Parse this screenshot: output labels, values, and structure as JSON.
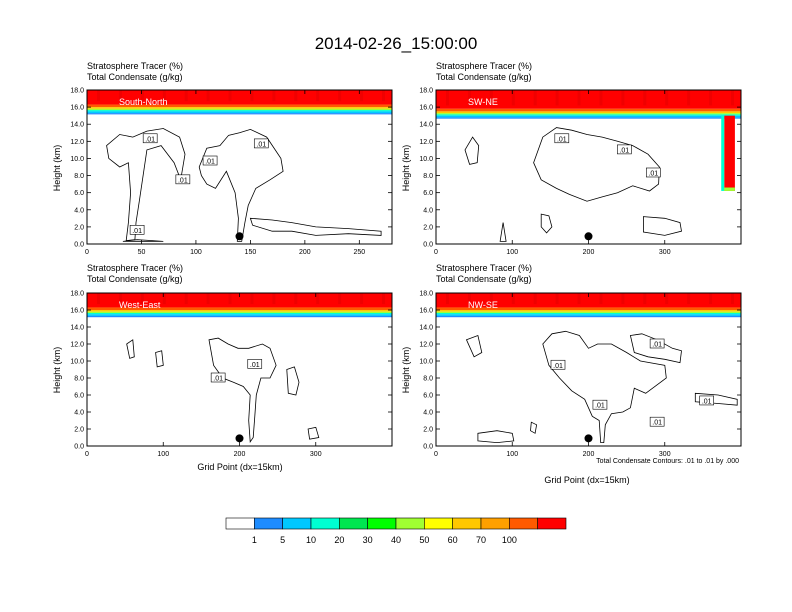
{
  "main_title": "2014-02-26_15:00:00",
  "chart_data": [
    {
      "type": "heatmap",
      "panel_label": "South-North",
      "header_line1": "Stratosphere Tracer   (%)",
      "header_line2": "Total Condensate   (g/kg)",
      "ylabel": "Height (km)",
      "xlabel": "",
      "xlim": [
        0,
        280
      ],
      "ylim": [
        0,
        18
      ],
      "xticks": [
        "0",
        "50",
        "100",
        "150",
        "200",
        "250"
      ],
      "yticks": [
        "0.0",
        "2.0",
        "4.0",
        "6.0",
        "8.0",
        "10.0",
        "12.0",
        "14.0",
        "16.0",
        "18.0"
      ],
      "tracer_base_km": 15.5,
      "marker_x": 140,
      "contour_labels": [
        {
          "text": ".01",
          "x": 58,
          "y": 12.3
        },
        {
          "text": ".01",
          "x": 113,
          "y": 9.7
        },
        {
          "text": ".01",
          "x": 160,
          "y": 11.7
        },
        {
          "text": ".01",
          "x": 88,
          "y": 7.5
        },
        {
          "text": ".01",
          "x": 46,
          "y": 1.6
        }
      ]
    },
    {
      "type": "heatmap",
      "panel_label": "SW-NE",
      "header_line1": "Stratosphere Tracer   (%)",
      "header_line2": "Total Condensate   (g/kg)",
      "ylabel": "Height (km)",
      "xlabel": "",
      "xlim": [
        0,
        400
      ],
      "ylim": [
        0,
        18
      ],
      "xticks": [
        "0",
        "100",
        "200",
        "300"
      ],
      "yticks": [
        "0.0",
        "2.0",
        "4.0",
        "6.0",
        "8.0",
        "10.0",
        "12.0",
        "14.0",
        "16.0",
        "18.0"
      ],
      "tracer_base_km": 15.0,
      "marker_x": 200,
      "contour_labels": [
        {
          "text": ".01",
          "x": 165,
          "y": 12.3
        },
        {
          "text": ".01",
          "x": 247,
          "y": 11.0
        },
        {
          "text": ".01",
          "x": 285,
          "y": 8.3
        }
      ]
    },
    {
      "type": "heatmap",
      "panel_label": "West-East",
      "header_line1": "Stratosphere Tracer   (%)",
      "header_line2": "Total Condensate   (g/kg)",
      "ylabel": "Height (km)",
      "xlabel": "Grid Point (dx=15km)",
      "xlim": [
        0,
        400
      ],
      "ylim": [
        0,
        18
      ],
      "xticks": [
        "0",
        "100",
        "200",
        "300"
      ],
      "yticks": [
        "0.0",
        "2.0",
        "4.0",
        "6.0",
        "8.0",
        "10.0",
        "12.0",
        "14.0",
        "16.0",
        "18.0"
      ],
      "tracer_base_km": 15.5,
      "marker_x": 200,
      "contour_labels": [
        {
          "text": ".01",
          "x": 220,
          "y": 9.6
        },
        {
          "text": ".01",
          "x": 172,
          "y": 8.0
        }
      ]
    },
    {
      "type": "heatmap",
      "panel_label": "NW-SE",
      "header_line1": "Stratosphere Tracer   (%)",
      "header_line2": "Total Condensate   (g/kg)",
      "ylabel": "Height (km)",
      "xlabel": "Grid Point (dx=15km)",
      "xlim": [
        0,
        400
      ],
      "ylim": [
        0,
        18
      ],
      "xticks": [
        "0",
        "100",
        "200",
        "300"
      ],
      "yticks": [
        "0.0",
        "2.0",
        "4.0",
        "6.0",
        "8.0",
        "10.0",
        "12.0",
        "14.0",
        "16.0",
        "18.0"
      ],
      "tracer_base_km": 15.5,
      "marker_x": 200,
      "contour_labels": [
        {
          "text": ".01",
          "x": 290,
          "y": 12.0
        },
        {
          "text": ".01",
          "x": 160,
          "y": 9.5
        },
        {
          "text": ".01",
          "x": 215,
          "y": 4.8
        },
        {
          "text": ".01",
          "x": 290,
          "y": 2.8
        },
        {
          "text": ".01",
          "x": 355,
          "y": 5.3
        }
      ]
    }
  ],
  "contour_note": "Total Condensate Contours: .01 to .01 by .000",
  "colorbar": {
    "labels": [
      "1",
      "5",
      "10",
      "20",
      "30",
      "40",
      "50",
      "60",
      "70",
      "100"
    ],
    "colors": [
      "#ffffff",
      "#1e8cff",
      "#00c8ff",
      "#00ffd2",
      "#00e650",
      "#00ff00",
      "#a0ff32",
      "#ffff00",
      "#ffc800",
      "#ffa000",
      "#ff5a00",
      "#ff0000"
    ]
  }
}
